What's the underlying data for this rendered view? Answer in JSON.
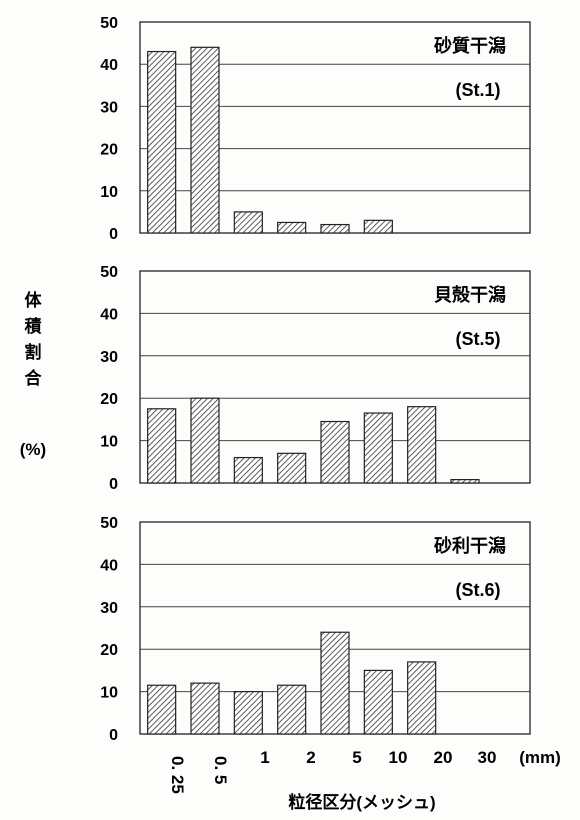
{
  "chart_data": {
    "type": "bar",
    "ylabel_lines": [
      "体",
      "積",
      "割",
      "合"
    ],
    "ylabel_unit": "(%)",
    "xlabel": "粒径区分(メッシュ)",
    "x_unit": "(mm)",
    "x_ticks": [
      "0. 25",
      "0. 5",
      "1",
      "2",
      "5",
      "10",
      "20",
      "30"
    ],
    "ylim": [
      0,
      50
    ],
    "yticks": [
      0,
      10,
      20,
      30,
      40,
      50
    ],
    "grid": true,
    "bar_count": 9,
    "panels": [
      {
        "title": "砂質干潟",
        "station": "(St.1)",
        "values": [
          43,
          44,
          5,
          2.5,
          2,
          3,
          0,
          0,
          0
        ]
      },
      {
        "title": "貝殻干潟",
        "station": "(St.5)",
        "values": [
          17.5,
          20,
          6,
          7,
          14.5,
          16.5,
          18,
          0.8,
          0
        ]
      },
      {
        "title": "砂利干潟",
        "station": "(St.6)",
        "values": [
          11.5,
          12,
          10,
          11.5,
          24,
          15,
          17,
          0,
          0
        ]
      }
    ]
  }
}
